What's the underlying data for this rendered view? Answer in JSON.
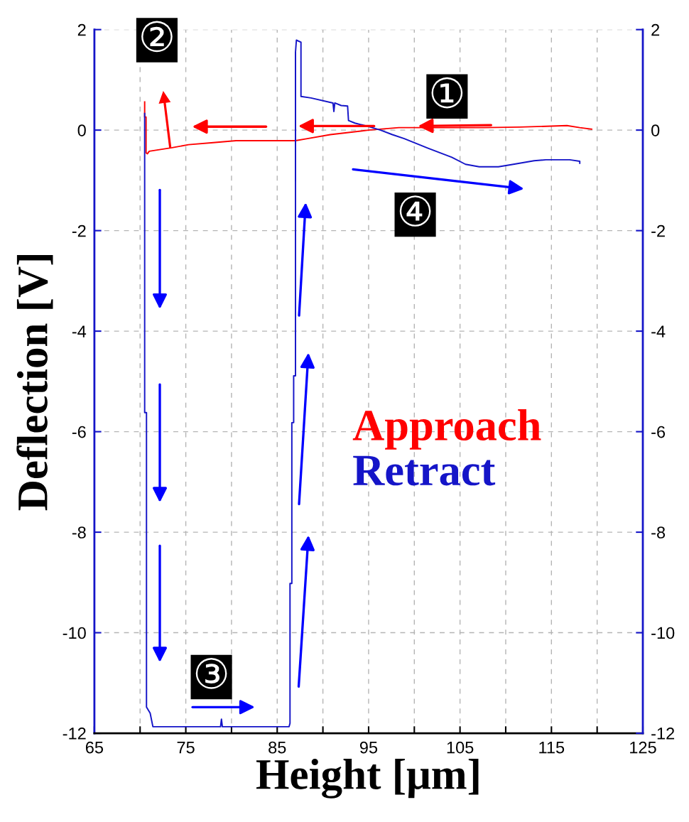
{
  "chart_data": {
    "type": "line",
    "xlabel": "Height [μm]",
    "ylabel": "Deflection [V]",
    "annotations": [
      "①",
      {
        "text": "②",
        "x": 73.3,
        "y": -0.35
      },
      "③",
      "④"
    ],
    "xlim": [
      65,
      125
    ],
    "xticks": [
      65,
      {
        "value": 70,
        "label": null
      },
      75,
      {
        "value": 80,
        "label": null
      },
      85,
      {
        "value": 90,
        "label": null
      },
      95,
      {
        "value": 100,
        "label": null
      },
      105,
      {
        "value": 110,
        "label": null
      },
      115,
      {
        "value": 120,
        "label": null
      },
      125
    ],
    "ylim": [
      -12,
      2
    ],
    "yticks": [
      -12,
      -10,
      -8,
      -6,
      -4,
      -2,
      0,
      2
    ],
    "y2lim": [
      -12,
      2
    ],
    "y2ticks": [
      -12,
      -10,
      -8,
      -6,
      -4,
      -2,
      0,
      2
    ],
    "grid": true,
    "legend": "right",
    "series": [
      {
        "name": "Approach",
        "color": "#ff0000",
        "x": [
          119.4,
          118.1,
          116.7,
          111.5,
          107.6,
          98.3,
          95.0,
          90.8,
          88.3,
          87.0,
          85.9,
          80.5,
          78.0,
          75.3,
          73.5,
          71.0,
          70.8,
          70.65,
          70.65,
          70.5,
          70.5
        ],
        "values": [
          0.02,
          0.05,
          0.09,
          0.06,
          0.05,
          0.05,
          0.0,
          -0.09,
          -0.17,
          -0.21,
          -0.21,
          -0.21,
          -0.25,
          -0.29,
          -0.35,
          -0.42,
          -0.47,
          -0.45,
          0.26,
          0.26,
          0.56
        ]
      },
      {
        "name": "Retract",
        "color": "#1515c8",
        "x": [
          70.5,
          70.5,
          70.7,
          70.7,
          71.1,
          71.4,
          78.8,
          78.9,
          79.0,
          86.3,
          86.4,
          86.4,
          86.6,
          86.6,
          86.8,
          86.8,
          87.0,
          87.0,
          87.1,
          87.6,
          87.6,
          88.7,
          91.1,
          91.2,
          91.3,
          92.0,
          92.7,
          92.8,
          93.5,
          95.0,
          96.3,
          97.6,
          98.9,
          101.5,
          104.1,
          105.6,
          107.1,
          109.2,
          110.5,
          113.1,
          114.4,
          117.0,
          118.1,
          118.1
        ],
        "values": [
          0.33,
          -5.62,
          -5.62,
          -11.48,
          -11.6,
          -11.87,
          -11.87,
          -11.72,
          -11.87,
          -11.87,
          -11.8,
          -9.02,
          -9.02,
          -5.82,
          -5.82,
          -4.89,
          -4.89,
          1.55,
          1.79,
          1.75,
          0.67,
          0.64,
          0.54,
          0.37,
          0.54,
          0.49,
          0.48,
          0.19,
          0.14,
          0.07,
          0.0,
          -0.09,
          -0.17,
          -0.36,
          -0.54,
          -0.68,
          -0.73,
          -0.73,
          -0.69,
          -0.61,
          -0.59,
          -0.59,
          -0.62,
          -0.66
        ]
      }
    ]
  }
}
